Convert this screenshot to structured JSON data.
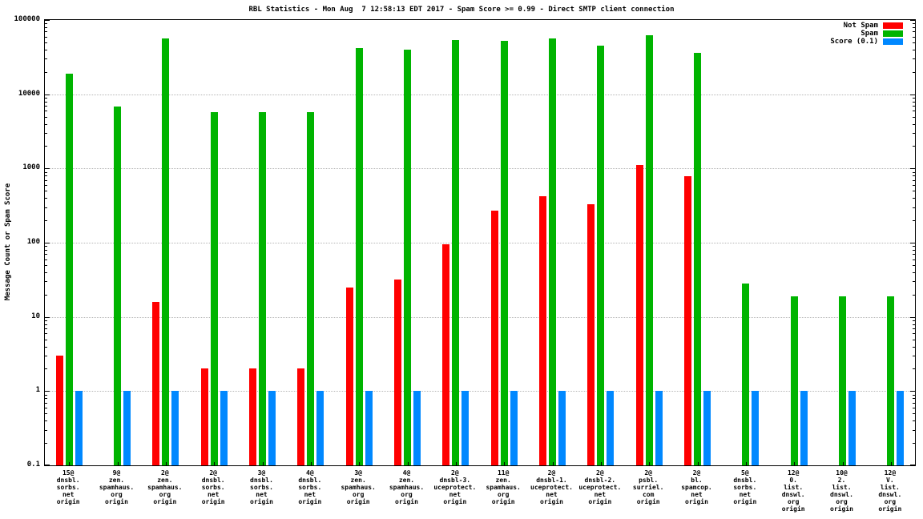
{
  "chart_data": {
    "type": "bar",
    "title": "RBL Statistics - Mon Aug  7 12:58:13 EDT 2017 - Spam Score >= 0.99 - Direct SMTP client connection",
    "ylabel": "Message Count or Spam Score",
    "y_scale": "log",
    "ylim": [
      0.1,
      100000
    ],
    "y_ticks": [
      0.1,
      1,
      10,
      100,
      1000,
      10000,
      100000
    ],
    "y_tick_labels": [
      "0.1",
      "1",
      "10",
      "100",
      "1000",
      "10000",
      "100000"
    ],
    "grid": true,
    "legend_position": "top-right",
    "categories": [
      [
        "15@",
        "dnsbl.",
        "sorbs.",
        "net",
        "origin"
      ],
      [
        "9@",
        "zen.",
        "spamhaus.",
        "org",
        "origin"
      ],
      [
        "2@",
        "zen.",
        "spamhaus.",
        "org",
        "origin"
      ],
      [
        "2@",
        "dnsbl.",
        "sorbs.",
        "net",
        "origin"
      ],
      [
        "3@",
        "dnsbl.",
        "sorbs.",
        "net",
        "origin"
      ],
      [
        "4@",
        "dnsbl.",
        "sorbs.",
        "net",
        "origin"
      ],
      [
        "3@",
        "zen.",
        "spamhaus.",
        "org",
        "origin"
      ],
      [
        "4@",
        "zen.",
        "spamhaus.",
        "org",
        "origin"
      ],
      [
        "2@",
        "dnsbl-3.",
        "uceprotect.",
        "net",
        "origin"
      ],
      [
        "11@",
        "zen.",
        "spamhaus.",
        "org",
        "origin"
      ],
      [
        "2@",
        "dnsbl-1.",
        "uceprotect.",
        "net",
        "origin"
      ],
      [
        "2@",
        "dnsbl-2.",
        "uceprotect.",
        "net",
        "origin"
      ],
      [
        "2@",
        "psbl.",
        "surriel.",
        "com",
        "origin"
      ],
      [
        "2@",
        "bl.",
        "spamcop.",
        "net",
        "origin"
      ],
      [
        "5@",
        "dnsbl.",
        "sorbs.",
        "net",
        "origin"
      ],
      [
        "12@",
        "0.",
        "list.",
        "dnswl.",
        "org",
        "origin"
      ],
      [
        "10@",
        "2.",
        "list.",
        "dnswl.",
        "org",
        "origin"
      ],
      [
        "12@",
        "V.",
        "list.",
        "dnswl.",
        "org",
        "origin"
      ]
    ],
    "series": [
      {
        "name": "Not Spam",
        "color": "#ff0000",
        "values": [
          3,
          null,
          16,
          2,
          2,
          2,
          25,
          32,
          95,
          270,
          420,
          330,
          1100,
          780,
          null,
          null,
          null,
          null
        ]
      },
      {
        "name": "Spam",
        "color": "#00b400",
        "values": [
          19000,
          6800,
          56000,
          5800,
          5800,
          5800,
          42000,
          40000,
          54000,
          53000,
          57000,
          45000,
          62000,
          36000,
          28,
          19,
          19,
          19
        ]
      },
      {
        "name": "Score (0.1)",
        "color": "#0088ff",
        "values": [
          1,
          1,
          1,
          1,
          1,
          1,
          1,
          1,
          1,
          1,
          1,
          1,
          1,
          1,
          1,
          1,
          1,
          1
        ]
      }
    ]
  }
}
